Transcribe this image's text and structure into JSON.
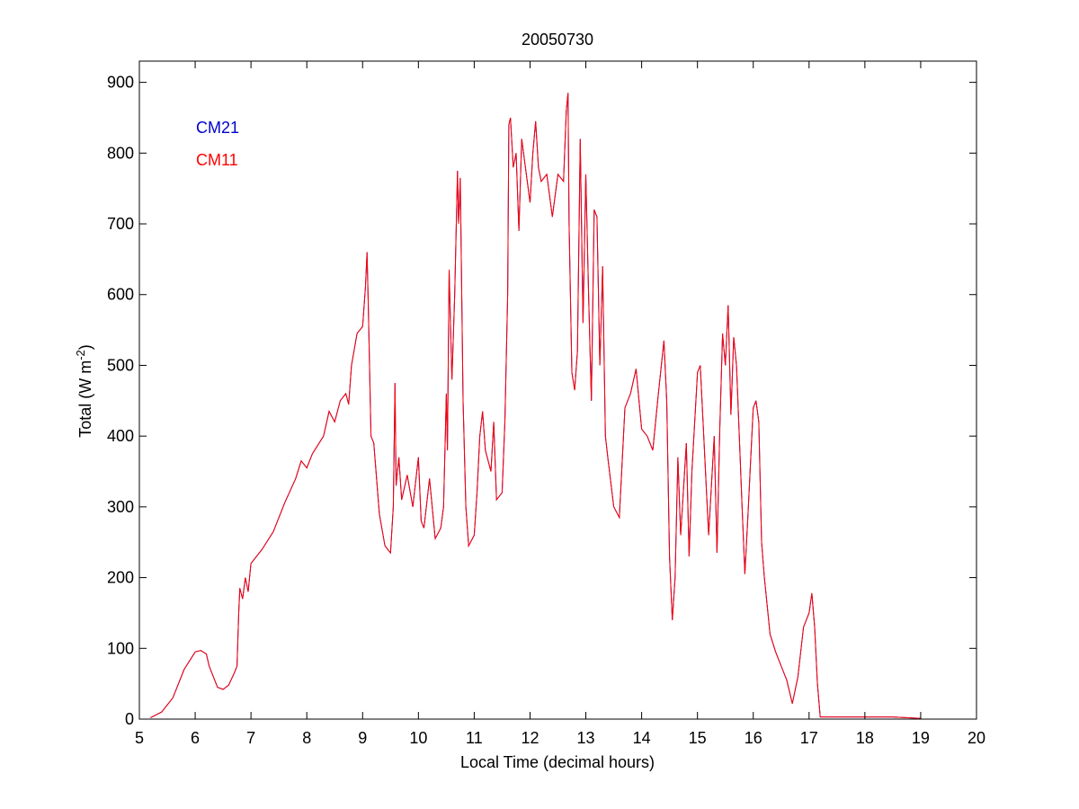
{
  "chart_data": {
    "type": "line",
    "title": "20050730",
    "x_label": "Local Time (decimal hours)",
    "y_label": {
      "text": "Total (W m",
      "superscript": "-2",
      "suffix": ")"
    },
    "xlim": [
      5,
      20
    ],
    "xticks": [
      5,
      6,
      7,
      8,
      9,
      10,
      11,
      12,
      13,
      14,
      15,
      16,
      17,
      18,
      19,
      20
    ],
    "ylim": [
      0,
      930
    ],
    "yticks": [
      0,
      100,
      200,
      300,
      400,
      500,
      600,
      700,
      800,
      900
    ],
    "grid": false,
    "legend": "upper left",
    "x": [
      5.2,
      5.4,
      5.6,
      5.8,
      6.0,
      6.1,
      6.2,
      6.25,
      6.3,
      6.4,
      6.5,
      6.6,
      6.7,
      6.75,
      6.78,
      6.8,
      6.85,
      6.9,
      6.95,
      7.0,
      7.2,
      7.4,
      7.6,
      7.8,
      7.9,
      8.0,
      8.1,
      8.3,
      8.4,
      8.5,
      8.6,
      8.7,
      8.75,
      8.8,
      8.9,
      9.0,
      9.05,
      9.08,
      9.1,
      9.15,
      9.2,
      9.3,
      9.4,
      9.5,
      9.55,
      9.58,
      9.6,
      9.65,
      9.7,
      9.8,
      9.9,
      10.0,
      10.05,
      10.1,
      10.2,
      10.3,
      10.4,
      10.45,
      10.5,
      10.52,
      10.55,
      10.6,
      10.65,
      10.7,
      10.72,
      10.75,
      10.8,
      10.85,
      10.9,
      11.0,
      11.05,
      11.1,
      11.15,
      11.2,
      11.3,
      11.35,
      11.4,
      11.5,
      11.55,
      11.6,
      11.62,
      11.65,
      11.7,
      11.75,
      11.8,
      11.85,
      11.9,
      11.95,
      12.0,
      12.05,
      12.1,
      12.15,
      12.2,
      12.3,
      12.4,
      12.5,
      12.6,
      12.65,
      12.68,
      12.7,
      12.75,
      12.8,
      12.85,
      12.9,
      12.95,
      13.0,
      13.05,
      13.1,
      13.15,
      13.2,
      13.25,
      13.3,
      13.35,
      13.4,
      13.5,
      13.6,
      13.7,
      13.8,
      13.9,
      14.0,
      14.1,
      14.2,
      14.3,
      14.4,
      14.45,
      14.5,
      14.55,
      14.6,
      14.65,
      14.7,
      14.8,
      14.85,
      14.9,
      15.0,
      15.05,
      15.1,
      15.2,
      15.3,
      15.35,
      15.4,
      15.45,
      15.5,
      15.55,
      15.6,
      15.65,
      15.7,
      15.8,
      15.85,
      15.9,
      16.0,
      16.05,
      16.1,
      16.15,
      16.2,
      16.3,
      16.4,
      16.5,
      16.6,
      16.7,
      16.8,
      16.9,
      17.0,
      17.05,
      17.1,
      17.15,
      17.2,
      17.5,
      18.0,
      18.5,
      19.0
    ],
    "series": [
      {
        "name": "CM21",
        "color": "#0000cc",
        "values": [
          2,
          10,
          30,
          70,
          95,
          97,
          92,
          75,
          65,
          45,
          42,
          48,
          65,
          75,
          150,
          185,
          170,
          200,
          180,
          220,
          240,
          265,
          305,
          340,
          365,
          355,
          375,
          400,
          435,
          420,
          450,
          460,
          445,
          500,
          545,
          555,
          610,
          660,
          590,
          400,
          390,
          290,
          245,
          235,
          300,
          475,
          330,
          370,
          310,
          345,
          300,
          370,
          280,
          270,
          340,
          255,
          270,
          300,
          460,
          380,
          635,
          480,
          600,
          775,
          700,
          765,
          450,
          300,
          245,
          260,
          320,
          400,
          435,
          380,
          350,
          420,
          310,
          320,
          420,
          600,
          840,
          850,
          780,
          800,
          690,
          820,
          790,
          760,
          730,
          800,
          845,
          780,
          760,
          770,
          710,
          770,
          760,
          860,
          885,
          700,
          490,
          465,
          520,
          820,
          560,
          770,
          600,
          450,
          720,
          710,
          500,
          640,
          400,
          365,
          300,
          285,
          440,
          460,
          495,
          410,
          400,
          380,
          460,
          535,
          450,
          230,
          140,
          200,
          370,
          260,
          390,
          230,
          350,
          490,
          500,
          420,
          260,
          400,
          235,
          410,
          545,
          500,
          585,
          430,
          540,
          500,
          300,
          205,
          280,
          440,
          450,
          420,
          250,
          200,
          120,
          95,
          75,
          55,
          22,
          60,
          130,
          150,
          178,
          130,
          50,
          3,
          3,
          3,
          3,
          1
        ]
      },
      {
        "name": "CM11",
        "color": "#ff0000",
        "values": [
          2,
          10,
          30,
          70,
          95,
          97,
          92,
          75,
          65,
          45,
          42,
          48,
          65,
          75,
          150,
          185,
          170,
          200,
          180,
          220,
          240,
          265,
          305,
          340,
          365,
          355,
          375,
          400,
          435,
          420,
          450,
          460,
          445,
          500,
          545,
          555,
          610,
          660,
          590,
          400,
          390,
          290,
          245,
          235,
          300,
          475,
          330,
          370,
          310,
          345,
          300,
          370,
          280,
          270,
          340,
          255,
          270,
          300,
          460,
          380,
          635,
          480,
          600,
          775,
          700,
          765,
          450,
          300,
          245,
          260,
          320,
          400,
          435,
          380,
          350,
          420,
          310,
          320,
          420,
          600,
          840,
          850,
          780,
          800,
          690,
          820,
          790,
          760,
          730,
          800,
          845,
          780,
          760,
          770,
          710,
          770,
          760,
          860,
          885,
          700,
          490,
          465,
          520,
          820,
          560,
          770,
          600,
          450,
          720,
          710,
          500,
          640,
          400,
          365,
          300,
          285,
          440,
          460,
          495,
          410,
          400,
          380,
          460,
          535,
          450,
          230,
          140,
          200,
          370,
          260,
          390,
          230,
          350,
          490,
          500,
          420,
          260,
          400,
          235,
          410,
          545,
          500,
          585,
          430,
          540,
          500,
          300,
          205,
          280,
          440,
          450,
          420,
          250,
          200,
          120,
          95,
          75,
          55,
          22,
          60,
          130,
          150,
          178,
          130,
          50,
          3,
          3,
          3,
          3,
          1
        ]
      }
    ]
  }
}
